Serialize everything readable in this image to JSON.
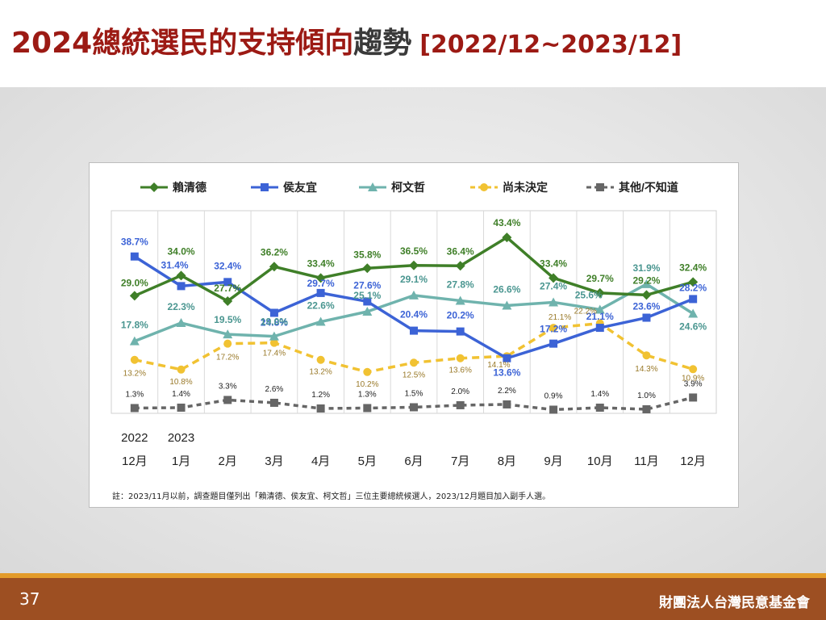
{
  "title": {
    "main": "2024總統選民的支持傾向",
    "trend": "趨勢",
    "range": "[2022/12~2023/12]"
  },
  "footer": {
    "page_number": "37",
    "organization": "財團法人台灣民意基金會"
  },
  "colors": {
    "title_red": "#9c1a14",
    "footer_brown": "#9d4f22",
    "footer_stripe": "#e39b2a"
  },
  "chart_data": {
    "type": "line",
    "categories": [
      "12月",
      "1月",
      "2月",
      "3月",
      "4月",
      "5月",
      "6月",
      "7月",
      "8月",
      "9月",
      "10月",
      "11月",
      "12月"
    ],
    "year_labels": [
      "2022",
      "2023"
    ],
    "series": [
      {
        "name": "賴清德",
        "color": "#3f7f28",
        "marker": "diamond",
        "dashed": false,
        "label_color": "#3f7f28",
        "values": [
          29.0,
          34.0,
          27.7,
          36.2,
          33.4,
          35.8,
          36.5,
          36.4,
          43.4,
          33.4,
          29.7,
          29.2,
          32.4
        ],
        "labels": [
          "29.0%",
          "34.0%",
          "27.7%",
          "36.2%",
          "33.4%",
          "35.8%",
          "36.5%",
          "36.4%",
          "43.4%",
          "33.4%",
          "29.7%",
          "29.2%",
          "32.4%"
        ]
      },
      {
        "name": "侯友宜",
        "color": "#3c63d6",
        "marker": "square",
        "dashed": false,
        "label_color": "#3c63d6",
        "values": [
          38.7,
          31.4,
          32.4,
          24.8,
          29.7,
          27.6,
          20.4,
          20.2,
          13.6,
          17.2,
          21.1,
          23.6,
          28.2
        ],
        "labels": [
          "38.7%",
          "31.4%",
          "32.4%",
          "24.8%",
          "29.7%",
          "27.6%",
          "20.4%",
          "20.2%",
          "13.6%",
          "17.2%",
          "21.1%",
          "23.6%",
          "28.2%"
        ]
      },
      {
        "name": "柯文哲",
        "color": "#6fb3ad",
        "marker": "triangle",
        "dashed": false,
        "label_color": "#4a9690",
        "values": [
          17.8,
          22.3,
          19.5,
          19.0,
          22.6,
          25.1,
          29.1,
          27.8,
          26.6,
          27.4,
          25.6,
          31.9,
          24.6
        ],
        "labels": [
          "17.8%",
          "22.3%",
          "19.5%",
          "19.0%",
          "22.6%",
          "25.1%",
          "29.1%",
          "27.8%",
          "26.6%",
          "27.4%",
          "25.6%",
          "31.9%",
          "24.6%"
        ]
      },
      {
        "name": "尚未決定",
        "color": "#f1c232",
        "marker": "circle",
        "dashed": true,
        "label_color": "#9a7a2a",
        "values": [
          13.2,
          10.8,
          17.2,
          17.4,
          13.2,
          10.2,
          12.5,
          13.6,
          14.1,
          21.1,
          22.2,
          14.3,
          10.9
        ],
        "labels": [
          "13.2%",
          "10.8%",
          "17.2%",
          "17.4%",
          "13.2%",
          "10.2%",
          "12.5%",
          "13.6%",
          "14.1%",
          "21.1%",
          "22.2%",
          "14.3%",
          "10.9%"
        ]
      },
      {
        "name": "其他/不知道",
        "color": "#666666",
        "marker": "square",
        "dashed": true,
        "label_color": "#222222",
        "values": [
          1.3,
          1.4,
          3.3,
          2.6,
          1.2,
          1.3,
          1.5,
          2.0,
          2.2,
          0.9,
          1.4,
          1.0,
          3.9
        ],
        "labels": [
          "1.3%",
          "1.4%",
          "3.3%",
          "2.6%",
          "1.2%",
          "1.3%",
          "1.5%",
          "2.0%",
          "2.2%",
          "0.9%",
          "1.4%",
          "1.0%",
          "3.9%"
        ]
      }
    ],
    "ylim": [
      0,
      50
    ],
    "grid": true,
    "legend_position": "top",
    "footnote": "註：2023/11月以前，調查題目僅列出「賴清德、侯友宜、柯文哲」三位主要總統候選人，2023/12月題目加入副手人選。"
  }
}
